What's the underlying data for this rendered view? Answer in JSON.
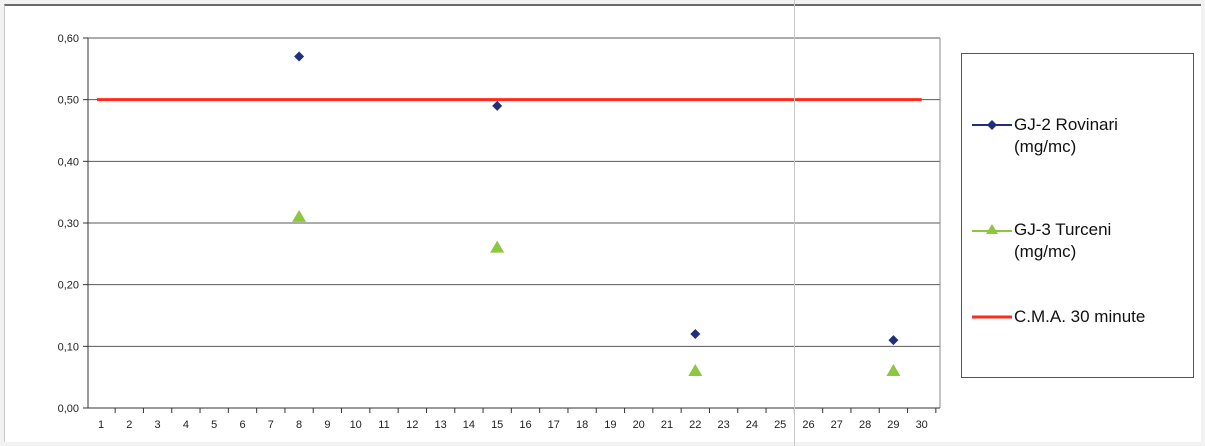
{
  "chart_data": {
    "type": "scatter",
    "title": "",
    "xlabel": "",
    "ylabel": "",
    "xlim": [
      1,
      30
    ],
    "ylim": [
      0,
      0.6
    ],
    "x_ticks": [
      "1",
      "2",
      "3",
      "4",
      "5",
      "6",
      "7",
      "8",
      "9",
      "10",
      "11",
      "12",
      "13",
      "14",
      "15",
      "16",
      "17",
      "18",
      "19",
      "20",
      "21",
      "22",
      "23",
      "24",
      "25",
      "26",
      "27",
      "28",
      "29",
      "30"
    ],
    "y_ticks": [
      "0,00",
      "0,10",
      "0,20",
      "0,30",
      "0,40",
      "0,50",
      "0,60"
    ],
    "y_tick_values": [
      0,
      0.1,
      0.2,
      0.3,
      0.4,
      0.5,
      0.6
    ],
    "grid": true,
    "legend_position": "right",
    "series": [
      {
        "name": "GJ-2 Rovinari (mg/mc)",
        "marker": "diamond",
        "color": "#1f2f7a",
        "points": [
          {
            "x": 8,
            "y": 0.57
          },
          {
            "x": 15,
            "y": 0.49
          },
          {
            "x": 22,
            "y": 0.12
          },
          {
            "x": 29,
            "y": 0.11
          }
        ]
      },
      {
        "name": "GJ-3 Turceni (mg/mc)",
        "marker": "triangle",
        "color": "#8dc63f",
        "points": [
          {
            "x": 8,
            "y": 0.31
          },
          {
            "x": 15,
            "y": 0.26
          },
          {
            "x": 22,
            "y": 0.06
          },
          {
            "x": 29,
            "y": 0.06
          }
        ]
      },
      {
        "name": "C.M.A. 30 minute",
        "marker": "line",
        "color": "#ff2a1a",
        "points": [
          {
            "x": 1,
            "y": 0.5
          },
          {
            "x": 30,
            "y": 0.5
          }
        ]
      }
    ]
  },
  "legend": {
    "items": [
      {
        "label": "GJ-2 Rovinari\n(mg/mc)"
      },
      {
        "label": "GJ-3 Turceni\n(mg/mc)"
      },
      {
        "label": "C.M.A. 30 minute"
      }
    ]
  }
}
